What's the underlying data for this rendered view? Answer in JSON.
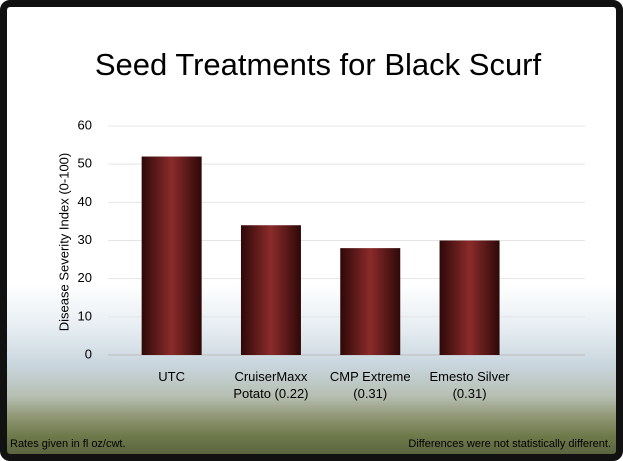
{
  "chart_data": {
    "type": "bar",
    "title": "Seed Treatments for Black Scurf",
    "y_label": "Disease Severity Index (0-100)",
    "categories": [
      "UTC",
      "CruiserMaxx Potato (0.22)",
      "CMP Extreme (0.31)",
      "Emesto Silver (0.31)"
    ],
    "values": [
      52,
      34,
      28,
      30
    ],
    "color": "#8b2b2b",
    "ylim": [
      0,
      60
    ],
    "yticks": [
      0,
      10,
      20,
      30,
      40,
      50,
      60
    ],
    "grid": true
  },
  "footnotes": [
    "Rates given in fl oz/cwt.",
    "Differences were not statistically different."
  ]
}
